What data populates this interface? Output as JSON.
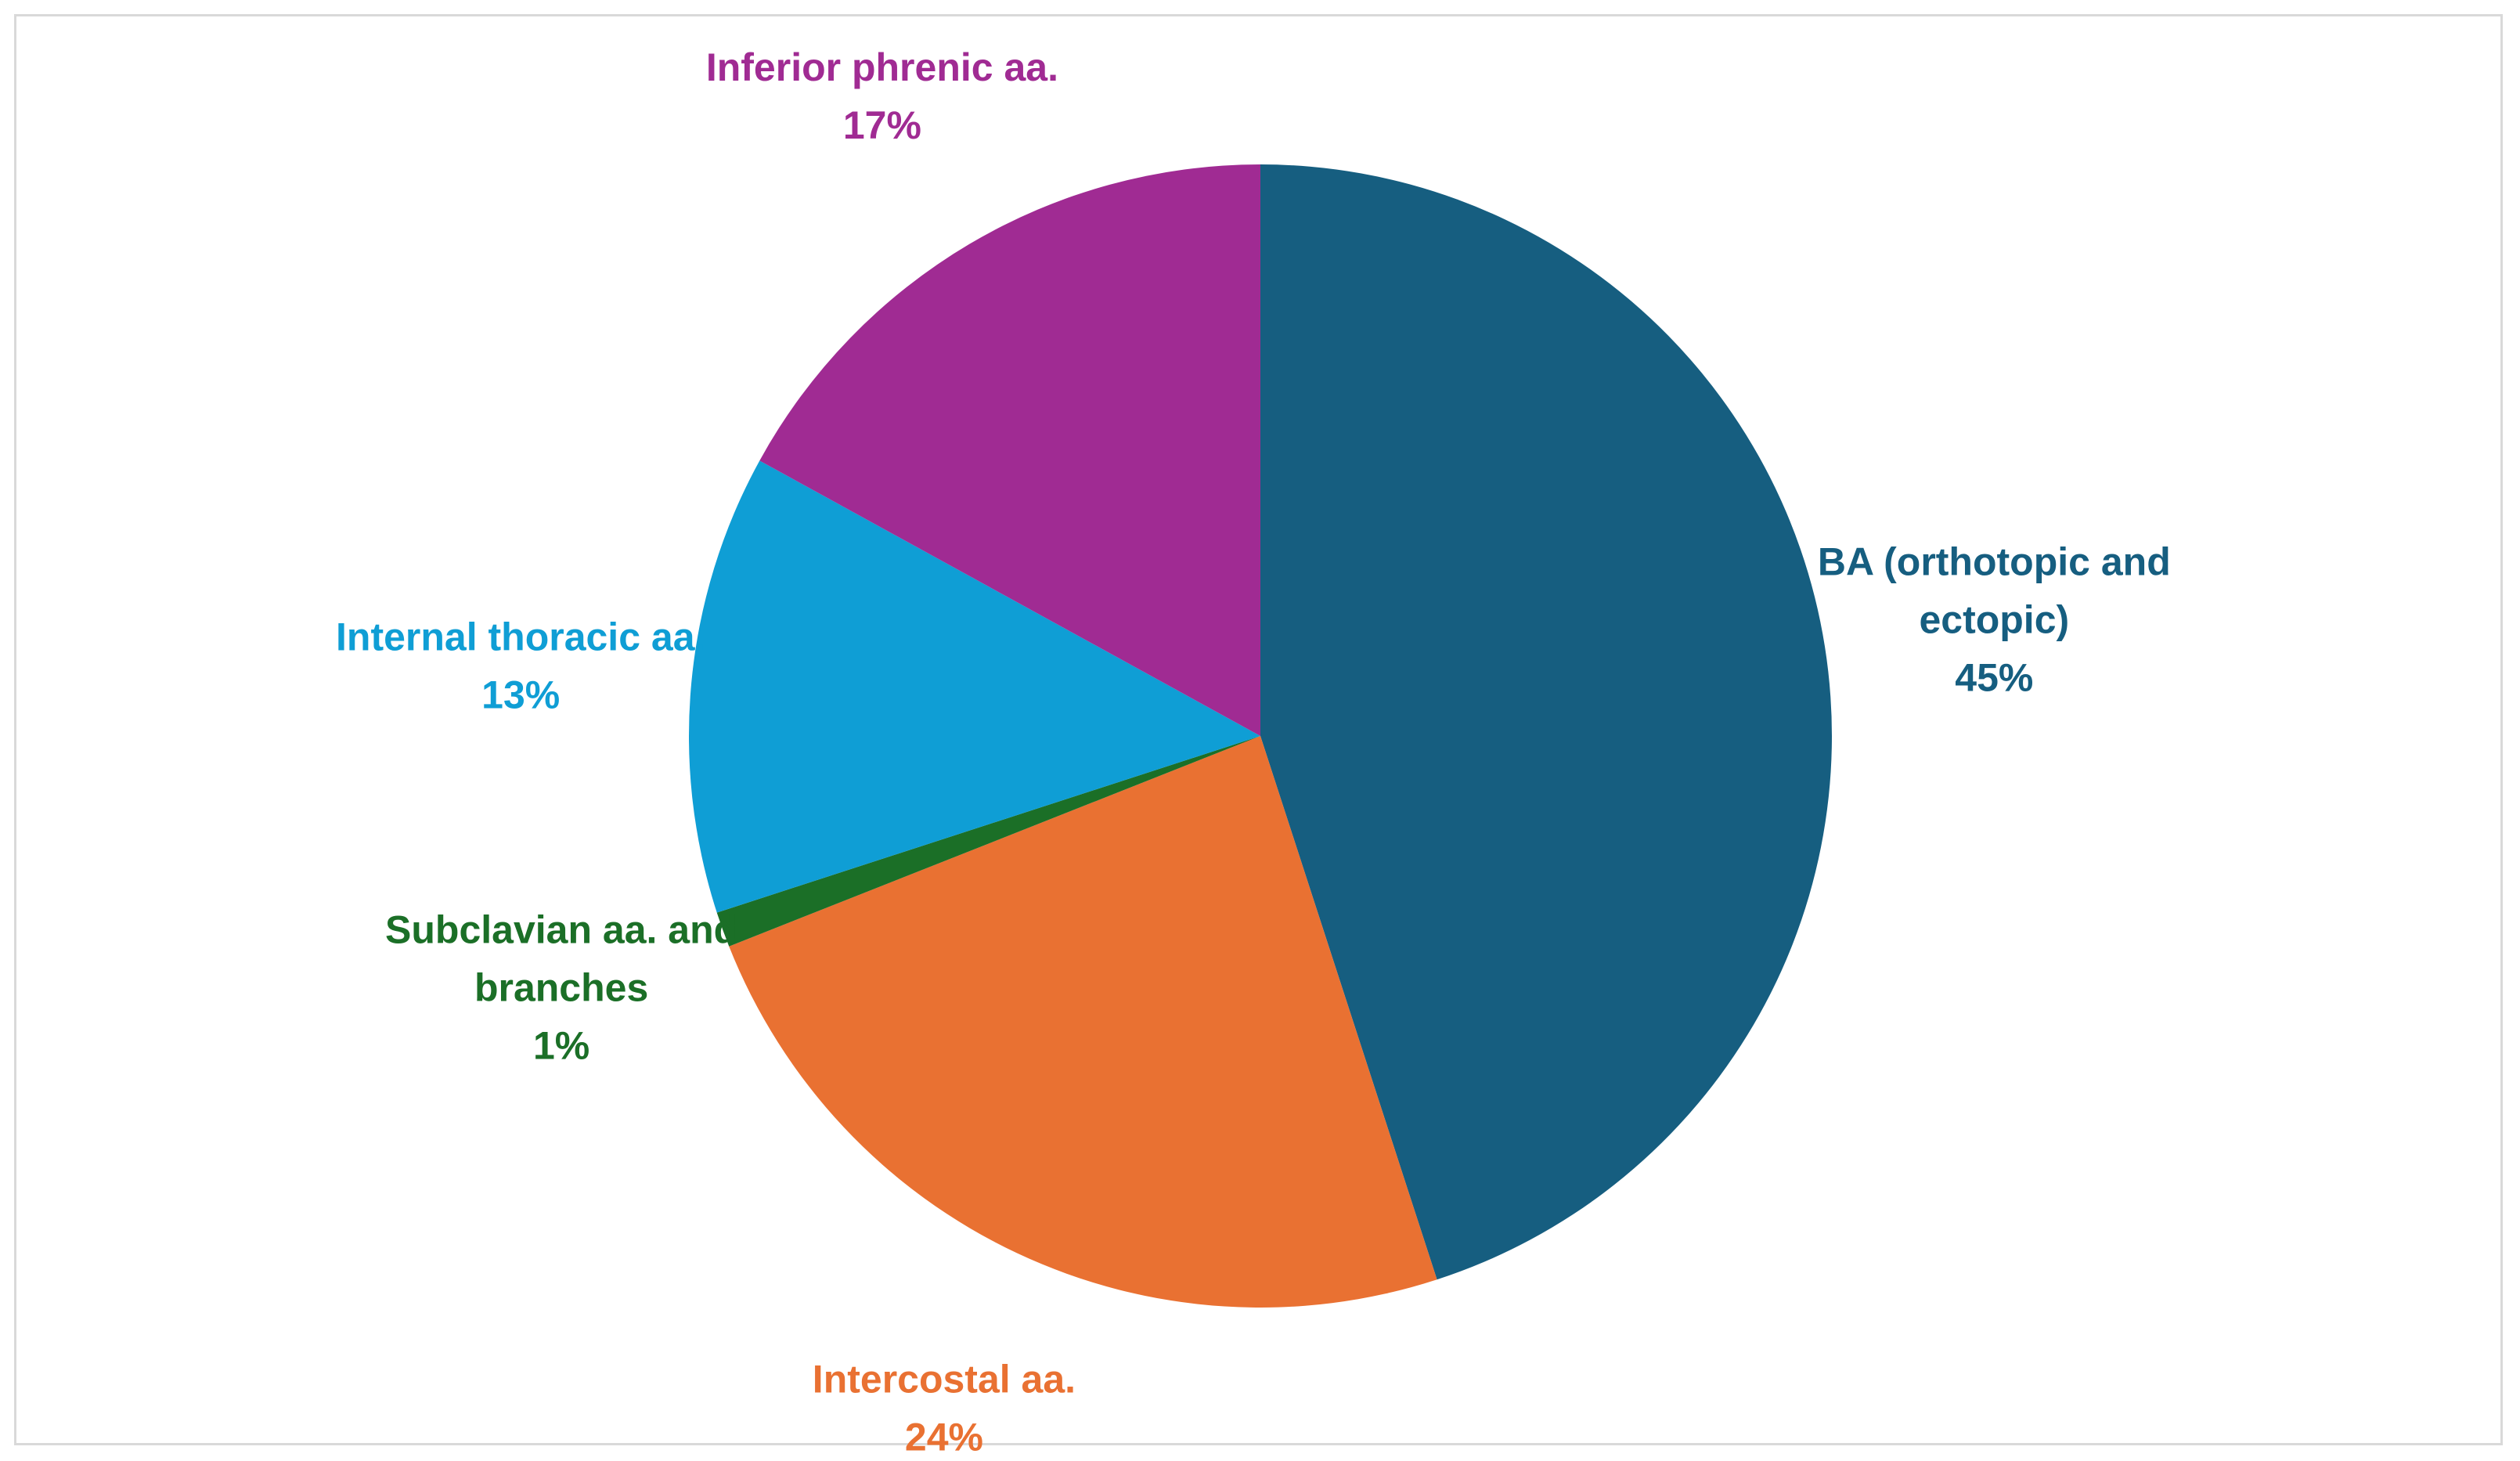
{
  "chart_data": {
    "type": "pie",
    "title": "",
    "start_angle_deg": 0,
    "direction": "clockwise",
    "slices": [
      {
        "label_lines": [
          "BA (orthotopic and",
          "ectopic)"
        ],
        "percent_label": "45%",
        "value": 45,
        "color": "#165e80"
      },
      {
        "label_lines": [
          "Intercostal aa."
        ],
        "percent_label": "24%",
        "value": 24,
        "color": "#e97132"
      },
      {
        "label_lines": [
          "Subclavian aa. and",
          "branches"
        ],
        "percent_label": "1%",
        "value": 1,
        "color": "#1b6f27"
      },
      {
        "label_lines": [
          "Internal thoracic aa."
        ],
        "percent_label": "13%",
        "value": 13,
        "color": "#0f9ed5"
      },
      {
        "label_lines": [
          "Inferior phrenic aa."
        ],
        "percent_label": "17%",
        "value": 17,
        "color": "#a02b93"
      }
    ]
  }
}
